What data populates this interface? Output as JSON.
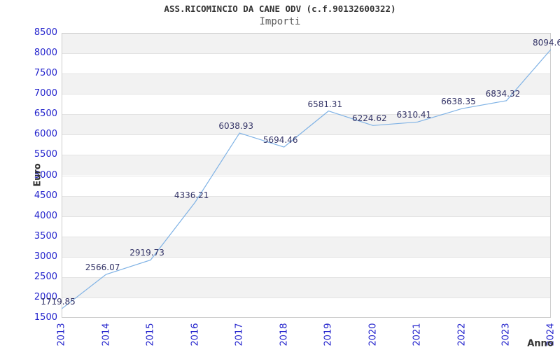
{
  "chart_data": {
    "type": "line",
    "title": "ASS.RICOMINCIO DA CANE ODV (c.f.90132600322)",
    "subtitle": "Importi",
    "xlabel": "Anno",
    "ylabel": "Euro",
    "x": [
      2013,
      2014,
      2015,
      2016,
      2017,
      2018,
      2019,
      2020,
      2021,
      2022,
      2023,
      2024
    ],
    "series": [
      {
        "name": "Importi",
        "values": [
          1719.85,
          2566.07,
          2919.73,
          4336.21,
          6038.93,
          5694.46,
          6581.31,
          6224.62,
          6310.41,
          6638.35,
          6834.32,
          8094.6
        ]
      }
    ],
    "point_labels": [
      "1719.85",
      "2566.07",
      "2919.73",
      "4336.21",
      "6038.93",
      "5694.46",
      "6581.31",
      "6224.62",
      "6310.41",
      "6638.35",
      "6834.32",
      "8094.6"
    ],
    "xticks": [
      "2013",
      "2014",
      "2015",
      "2016",
      "2017",
      "2018",
      "2019",
      "2020",
      "2021",
      "2022",
      "2023",
      "2024"
    ],
    "yticks": [
      1500,
      2000,
      2500,
      3000,
      3500,
      4000,
      4500,
      5000,
      5500,
      6000,
      6500,
      7000,
      7500,
      8000,
      8500
    ],
    "ylim": [
      1500,
      8500
    ],
    "ytick_step": 500,
    "grid": "alternating horizontal bands every 500, no vertical gridlines",
    "legend_position": "none",
    "marker": "none",
    "colors": {
      "line": "#7fb2e5",
      "point_label": "#333366",
      "tick_label": "#2222cc",
      "band_gray": "#f2f2f2",
      "band_white": "#ffffff",
      "gridline": "#e3e3e3",
      "frame": "#cccccc",
      "title": "#333333",
      "subtitle": "#5a5a5a",
      "axis_title": "#333333"
    }
  }
}
